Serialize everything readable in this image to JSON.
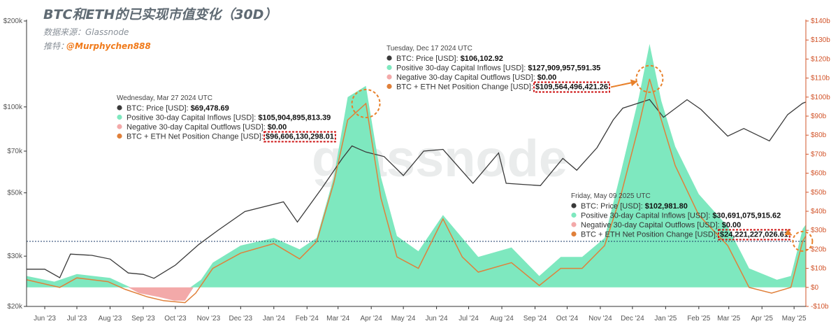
{
  "header": {
    "title": "BTC和ETH的已实现市值变化（30D）",
    "source": "数据来源：Glassnode",
    "twitter_label": "推特：",
    "twitter_handle": "@Murphychen888",
    "watermark": "glassnode"
  },
  "colors": {
    "price": "#3a3a3a",
    "inflows": "#7ee8bf",
    "outflows": "#f3a9a9",
    "net": "#e0803a",
    "highlight_circle": "#e8802a",
    "highlight_box": "#cc1111",
    "dotted_line": "#1a3a6a"
  },
  "chart_data": {
    "type": "area",
    "x_tick_labels": [
      "Jun '23",
      "Jul '23",
      "Aug '23",
      "Sep '23",
      "Oct '23",
      "Nov '23",
      "Dec '23",
      "Jan '24",
      "Feb '24",
      "Mar '24",
      "Apr '24",
      "May '24",
      "Jun '24",
      "Jul '24",
      "Aug '24",
      "Sep '24",
      "Oct '24",
      "Nov '24",
      "Dec '24",
      "Jan '25",
      "Feb '25",
      "Mar '25",
      "Apr '25",
      "May '25"
    ],
    "x_range": [
      "2023-05-15",
      "2025-05-12"
    ],
    "left_axis": {
      "scale": "log",
      "unit": "USD",
      "range": [
        20000,
        200000
      ],
      "ticks": [
        {
          "v": 20000,
          "label": "$20k"
        },
        {
          "v": 30000,
          "label": "$30k"
        },
        {
          "v": 50000,
          "label": "$50k"
        },
        {
          "v": 70000,
          "label": "$70k"
        },
        {
          "v": 100000,
          "label": "$100k"
        },
        {
          "v": 200000,
          "label": "$200k"
        }
      ]
    },
    "right_axis": {
      "scale": "linear",
      "unit": "USD billions",
      "range": [
        -10,
        140
      ],
      "ticks": [
        {
          "v": -10,
          "label": "-$10b"
        },
        {
          "v": 0,
          "label": "$0"
        },
        {
          "v": 10,
          "label": "$10b"
        },
        {
          "v": 20,
          "label": "$20b"
        },
        {
          "v": 30,
          "label": "$30b"
        },
        {
          "v": 40,
          "label": "$40b"
        },
        {
          "v": 50,
          "label": "$50b"
        },
        {
          "v": 60,
          "label": "$60b"
        },
        {
          "v": 70,
          "label": "$70b"
        },
        {
          "v": 80,
          "label": "$80b"
        },
        {
          "v": 90,
          "label": "$90b"
        },
        {
          "v": 100,
          "label": "$100b"
        },
        {
          "v": 110,
          "label": "$110b"
        },
        {
          "v": 120,
          "label": "$120b"
        },
        {
          "v": 130,
          "label": "$130b"
        },
        {
          "v": 140,
          "label": "$140b"
        }
      ]
    },
    "reference_line_right": 24.2,
    "series": [
      {
        "name": "BTC: Price [USD]",
        "axis": "left",
        "kind": "line",
        "points": [
          [
            "2023-05-15",
            27000
          ],
          [
            "2023-06-01",
            27000
          ],
          [
            "2023-06-15",
            25200
          ],
          [
            "2023-06-25",
            30500
          ],
          [
            "2023-07-15",
            30200
          ],
          [
            "2023-08-01",
            29300
          ],
          [
            "2023-08-18",
            26200
          ],
          [
            "2023-09-01",
            25900
          ],
          [
            "2023-09-11",
            25100
          ],
          [
            "2023-10-01",
            27900
          ],
          [
            "2023-10-23",
            33000
          ],
          [
            "2023-11-10",
            37000
          ],
          [
            "2023-12-05",
            43000
          ],
          [
            "2024-01-10",
            46500
          ],
          [
            "2024-01-23",
            39500
          ],
          [
            "2024-02-15",
            52000
          ],
          [
            "2024-03-05",
            66000
          ],
          [
            "2024-03-14",
            73000
          ],
          [
            "2024-03-27",
            69478.69
          ],
          [
            "2024-04-13",
            67000
          ],
          [
            "2024-05-01",
            57500
          ],
          [
            "2024-05-20",
            70000
          ],
          [
            "2024-06-07",
            71000
          ],
          [
            "2024-07-05",
            54000
          ],
          [
            "2024-07-29",
            69000
          ],
          [
            "2024-08-05",
            54000
          ],
          [
            "2024-09-06",
            53000
          ],
          [
            "2024-09-27",
            66000
          ],
          [
            "2024-10-10",
            60000
          ],
          [
            "2024-10-29",
            72000
          ],
          [
            "2024-11-13",
            90000
          ],
          [
            "2024-11-22",
            99000
          ],
          [
            "2024-12-17",
            106102.92
          ],
          [
            "2024-12-30",
            92000
          ],
          [
            "2025-01-21",
            106000
          ],
          [
            "2025-02-03",
            98000
          ],
          [
            "2025-02-28",
            79000
          ],
          [
            "2025-03-15",
            84000
          ],
          [
            "2025-04-08",
            76000
          ],
          [
            "2025-04-25",
            94000
          ],
          [
            "2025-05-09",
            102981.8
          ],
          [
            "2025-05-12",
            104000
          ]
        ]
      },
      {
        "name": "Positive 30-day Capital Inflows [USD]",
        "axis": "right",
        "kind": "area",
        "points": [
          [
            "2023-05-15",
            6
          ],
          [
            "2023-06-10",
            3
          ],
          [
            "2023-07-01",
            7
          ],
          [
            "2023-08-01",
            5
          ],
          [
            "2023-08-20",
            0
          ],
          [
            "2023-10-15",
            0
          ],
          [
            "2023-10-25",
            4
          ],
          [
            "2023-11-05",
            13
          ],
          [
            "2023-12-01",
            22
          ],
          [
            "2024-01-01",
            26
          ],
          [
            "2024-01-25",
            20
          ],
          [
            "2024-02-10",
            26
          ],
          [
            "2024-02-26",
            58
          ],
          [
            "2024-03-10",
            100
          ],
          [
            "2024-03-27",
            105.9
          ],
          [
            "2024-04-10",
            58
          ],
          [
            "2024-04-25",
            27
          ],
          [
            "2024-05-15",
            19
          ],
          [
            "2024-06-07",
            38
          ],
          [
            "2024-06-25",
            26
          ],
          [
            "2024-07-10",
            16
          ],
          [
            "2024-08-10",
            21
          ],
          [
            "2024-09-05",
            6
          ],
          [
            "2024-09-25",
            16
          ],
          [
            "2024-10-15",
            16
          ],
          [
            "2024-11-05",
            26
          ],
          [
            "2024-11-20",
            60
          ],
          [
            "2024-12-07",
            100
          ],
          [
            "2024-12-17",
            127.9
          ],
          [
            "2024-12-28",
            98
          ],
          [
            "2025-01-10",
            74
          ],
          [
            "2025-02-01",
            49
          ],
          [
            "2025-02-28",
            32
          ],
          [
            "2025-03-20",
            10
          ],
          [
            "2025-04-15",
            4
          ],
          [
            "2025-04-28",
            6
          ],
          [
            "2025-05-09",
            30.69
          ],
          [
            "2025-05-12",
            33
          ]
        ]
      },
      {
        "name": "Negative 30-day Capital Outflows [USD]",
        "axis": "right",
        "kind": "area",
        "points": [
          [
            "2023-08-18",
            0
          ],
          [
            "2023-08-28",
            -3
          ],
          [
            "2023-09-15",
            -5
          ],
          [
            "2023-09-30",
            -7
          ],
          [
            "2023-10-10",
            -7
          ],
          [
            "2023-10-18",
            0
          ],
          [
            "2024-03-27",
            0
          ],
          [
            "2024-12-17",
            0
          ],
          [
            "2025-05-09",
            0
          ]
        ]
      },
      {
        "name": "BTC + ETH Net Position Change [USD]",
        "axis": "right",
        "kind": "line",
        "points": [
          [
            "2023-05-15",
            4
          ],
          [
            "2023-06-15",
            0
          ],
          [
            "2023-07-01",
            5
          ],
          [
            "2023-07-30",
            3
          ],
          [
            "2023-08-15",
            -1
          ],
          [
            "2023-09-05",
            -5
          ],
          [
            "2023-09-20",
            -7
          ],
          [
            "2023-10-10",
            -8
          ],
          [
            "2023-10-20",
            -3
          ],
          [
            "2023-11-05",
            10
          ],
          [
            "2023-12-01",
            18
          ],
          [
            "2024-01-01",
            23
          ],
          [
            "2024-01-25",
            15
          ],
          [
            "2024-02-10",
            24
          ],
          [
            "2024-02-26",
            55
          ],
          [
            "2024-03-10",
            88
          ],
          [
            "2024-03-27",
            96.61
          ],
          [
            "2024-04-10",
            47
          ],
          [
            "2024-04-25",
            16
          ],
          [
            "2024-05-15",
            10
          ],
          [
            "2024-06-07",
            36
          ],
          [
            "2024-06-25",
            16
          ],
          [
            "2024-07-10",
            8
          ],
          [
            "2024-08-10",
            13
          ],
          [
            "2024-09-05",
            1
          ],
          [
            "2024-09-25",
            10
          ],
          [
            "2024-10-15",
            10
          ],
          [
            "2024-11-05",
            22
          ],
          [
            "2024-11-20",
            48
          ],
          [
            "2024-12-07",
            85
          ],
          [
            "2024-12-17",
            109.56
          ],
          [
            "2024-12-28",
            88
          ],
          [
            "2025-01-10",
            64
          ],
          [
            "2025-02-01",
            38
          ],
          [
            "2025-02-28",
            22
          ],
          [
            "2025-03-20",
            0
          ],
          [
            "2025-04-10",
            -3
          ],
          [
            "2025-04-28",
            0
          ],
          [
            "2025-05-09",
            24.22
          ],
          [
            "2025-05-12",
            27
          ]
        ]
      }
    ],
    "tooltips": [
      {
        "date_label": "Wednesday, Mar 27 2024 UTC",
        "date": "2024-03-27",
        "rows": [
          {
            "label": "BTC: Price [USD]:",
            "value": "$69,478.69"
          },
          {
            "label": "Positive 30-day Capital Inflows [USD]:",
            "value": "$105,904,895,813.39"
          },
          {
            "label": "Negative 30-day Capital Outflows [USD]:",
            "value": "$0.00"
          },
          {
            "label": "BTC + ETH Net Position Change [USD]:",
            "value": "$96,606,130,298.01"
          }
        ]
      },
      {
        "date_label": "Tuesday, Dec 17 2024 UTC",
        "date": "2024-12-17",
        "rows": [
          {
            "label": "BTC: Price [USD]:",
            "value": "$106,102.92"
          },
          {
            "label": "Positive 30-day Capital Inflows [USD]:",
            "value": "$127,909,957,591.35"
          },
          {
            "label": "Negative 30-day Capital Outflows [USD]:",
            "value": "$0.00"
          },
          {
            "label": "BTC + ETH Net Position Change [USD]:",
            "value": "$109,564,496,421.26"
          }
        ]
      },
      {
        "date_label": "Friday, May 09 2025 UTC",
        "date": "2025-05-09",
        "rows": [
          {
            "label": "BTC: Price [USD]:",
            "value": "$102,981.80"
          },
          {
            "label": "Positive 30-day Capital Inflows [USD]:",
            "value": "$30,691,075,915.62"
          },
          {
            "label": "Negative 30-day Capital Outflows [USD]:",
            "value": "$0.00"
          },
          {
            "label": "BTC + ETH Net Position Change [USD]:",
            "value": "$24,221,227,026.61"
          }
        ]
      }
    ]
  }
}
